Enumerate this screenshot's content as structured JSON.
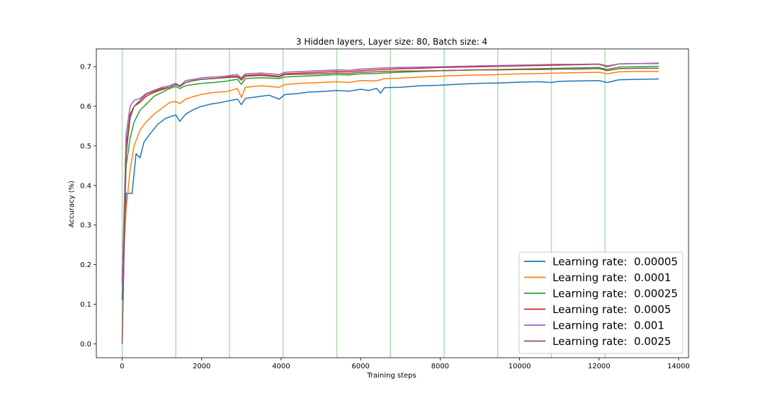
{
  "chart_data": {
    "type": "line",
    "title": "3 Hidden layers, Layer size: 80, Batch size: 4",
    "xlabel": "Training steps",
    "ylabel": "Accuracy (%)",
    "xlim": [
      -650,
      14250
    ],
    "ylim": [
      -0.035,
      0.745
    ],
    "xticks": [
      0,
      2000,
      4000,
      6000,
      8000,
      10000,
      12000,
      14000
    ],
    "yticks": [
      0.0,
      0.1,
      0.2,
      0.3,
      0.4,
      0.5,
      0.6,
      0.7
    ],
    "vlines": [
      0,
      1350,
      2700,
      4050,
      5400,
      6750,
      8100,
      9450,
      10800,
      12150
    ],
    "vline_color": "#b2dfb2",
    "legend_position": "lower-right",
    "grid": false,
    "series": [
      {
        "name": "Learning rate:  0.00005",
        "color": "#1f77b4",
        "points": [
          [
            0,
            0.11
          ],
          [
            100,
            0.38
          ],
          [
            250,
            0.38
          ],
          [
            350,
            0.48
          ],
          [
            450,
            0.47
          ],
          [
            550,
            0.51
          ],
          [
            700,
            0.53
          ],
          [
            900,
            0.555
          ],
          [
            1100,
            0.57
          ],
          [
            1350,
            0.578
          ],
          [
            1450,
            0.562
          ],
          [
            1600,
            0.58
          ],
          [
            1800,
            0.592
          ],
          [
            2000,
            0.6
          ],
          [
            2250,
            0.606
          ],
          [
            2500,
            0.61
          ],
          [
            2700,
            0.614
          ],
          [
            2900,
            0.618
          ],
          [
            3000,
            0.604
          ],
          [
            3100,
            0.62
          ],
          [
            3400,
            0.624
          ],
          [
            3700,
            0.628
          ],
          [
            3950,
            0.618
          ],
          [
            4100,
            0.63
          ],
          [
            4400,
            0.632
          ],
          [
            4700,
            0.636
          ],
          [
            5000,
            0.637
          ],
          [
            5400,
            0.64
          ],
          [
            5700,
            0.638
          ],
          [
            6000,
            0.643
          ],
          [
            6200,
            0.64
          ],
          [
            6400,
            0.645
          ],
          [
            6500,
            0.633
          ],
          [
            6600,
            0.647
          ],
          [
            7000,
            0.648
          ],
          [
            7500,
            0.652
          ],
          [
            8000,
            0.653
          ],
          [
            8500,
            0.656
          ],
          [
            9000,
            0.658
          ],
          [
            9500,
            0.659
          ],
          [
            10000,
            0.661
          ],
          [
            10500,
            0.662
          ],
          [
            10800,
            0.66
          ],
          [
            11000,
            0.663
          ],
          [
            11500,
            0.664
          ],
          [
            12000,
            0.665
          ],
          [
            12200,
            0.66
          ],
          [
            12500,
            0.667
          ],
          [
            13000,
            0.668
          ],
          [
            13500,
            0.669
          ]
        ]
      },
      {
        "name": "Learning rate:  0.0001",
        "color": "#ff7f0e",
        "points": [
          [
            0,
            0.15
          ],
          [
            100,
            0.34
          ],
          [
            200,
            0.44
          ],
          [
            300,
            0.5
          ],
          [
            450,
            0.54
          ],
          [
            600,
            0.56
          ],
          [
            800,
            0.58
          ],
          [
            1000,
            0.595
          ],
          [
            1200,
            0.61
          ],
          [
            1350,
            0.612
          ],
          [
            1450,
            0.607
          ],
          [
            1600,
            0.618
          ],
          [
            1800,
            0.625
          ],
          [
            2000,
            0.63
          ],
          [
            2300,
            0.635
          ],
          [
            2600,
            0.637
          ],
          [
            2700,
            0.639
          ],
          [
            2900,
            0.645
          ],
          [
            3000,
            0.622
          ],
          [
            3100,
            0.648
          ],
          [
            3500,
            0.652
          ],
          [
            3950,
            0.648
          ],
          [
            4100,
            0.655
          ],
          [
            4500,
            0.658
          ],
          [
            5000,
            0.66
          ],
          [
            5400,
            0.662
          ],
          [
            5700,
            0.66
          ],
          [
            6000,
            0.665
          ],
          [
            6400,
            0.664
          ],
          [
            6600,
            0.67
          ],
          [
            7000,
            0.671
          ],
          [
            7500,
            0.674
          ],
          [
            8000,
            0.676
          ],
          [
            8500,
            0.678
          ],
          [
            9000,
            0.679
          ],
          [
            9500,
            0.68
          ],
          [
            10000,
            0.682
          ],
          [
            10500,
            0.683
          ],
          [
            11000,
            0.684
          ],
          [
            11500,
            0.685
          ],
          [
            12000,
            0.686
          ],
          [
            12200,
            0.682
          ],
          [
            12500,
            0.687
          ],
          [
            13000,
            0.688
          ],
          [
            13500,
            0.688
          ]
        ]
      },
      {
        "name": "Learning rate:  0.00025",
        "color": "#2ca02c",
        "points": [
          [
            0,
            0.16
          ],
          [
            100,
            0.45
          ],
          [
            200,
            0.52
          ],
          [
            300,
            0.56
          ],
          [
            450,
            0.59
          ],
          [
            600,
            0.605
          ],
          [
            800,
            0.625
          ],
          [
            1000,
            0.635
          ],
          [
            1200,
            0.645
          ],
          [
            1350,
            0.65
          ],
          [
            1450,
            0.645
          ],
          [
            1600,
            0.652
          ],
          [
            1800,
            0.655
          ],
          [
            2000,
            0.658
          ],
          [
            2300,
            0.66
          ],
          [
            2600,
            0.663
          ],
          [
            2700,
            0.665
          ],
          [
            2900,
            0.668
          ],
          [
            3000,
            0.655
          ],
          [
            3100,
            0.67
          ],
          [
            3500,
            0.672
          ],
          [
            3950,
            0.67
          ],
          [
            4100,
            0.674
          ],
          [
            4500,
            0.676
          ],
          [
            5000,
            0.678
          ],
          [
            5400,
            0.68
          ],
          [
            5700,
            0.679
          ],
          [
            6000,
            0.682
          ],
          [
            6400,
            0.683
          ],
          [
            6600,
            0.684
          ],
          [
            7000,
            0.686
          ],
          [
            7500,
            0.688
          ],
          [
            8000,
            0.69
          ],
          [
            8500,
            0.691
          ],
          [
            9000,
            0.692
          ],
          [
            9500,
            0.693
          ],
          [
            10000,
            0.694
          ],
          [
            10500,
            0.695
          ],
          [
            11000,
            0.696
          ],
          [
            11500,
            0.697
          ],
          [
            12000,
            0.698
          ],
          [
            12200,
            0.693
          ],
          [
            12500,
            0.699
          ],
          [
            13000,
            0.7
          ],
          [
            13500,
            0.701
          ]
        ]
      },
      {
        "name": "Learning rate:  0.0005",
        "color": "#d62728",
        "points": [
          [
            0,
            0.16
          ],
          [
            100,
            0.5
          ],
          [
            200,
            0.58
          ],
          [
            300,
            0.6
          ],
          [
            450,
            0.61
          ],
          [
            600,
            0.625
          ],
          [
            800,
            0.635
          ],
          [
            1000,
            0.642
          ],
          [
            1200,
            0.648
          ],
          [
            1350,
            0.655
          ],
          [
            1450,
            0.65
          ],
          [
            1600,
            0.66
          ],
          [
            1800,
            0.665
          ],
          [
            2000,
            0.668
          ],
          [
            2300,
            0.67
          ],
          [
            2600,
            0.673
          ],
          [
            2700,
            0.675
          ],
          [
            2900,
            0.676
          ],
          [
            3000,
            0.668
          ],
          [
            3100,
            0.678
          ],
          [
            3500,
            0.68
          ],
          [
            3950,
            0.676
          ],
          [
            4100,
            0.682
          ],
          [
            4500,
            0.684
          ],
          [
            5000,
            0.686
          ],
          [
            5400,
            0.688
          ],
          [
            5700,
            0.687
          ],
          [
            6000,
            0.69
          ],
          [
            6400,
            0.692
          ],
          [
            6600,
            0.693
          ],
          [
            7000,
            0.695
          ],
          [
            7500,
            0.696
          ],
          [
            8000,
            0.698
          ],
          [
            8500,
            0.699
          ],
          [
            9000,
            0.7
          ],
          [
            9500,
            0.701
          ],
          [
            10000,
            0.702
          ],
          [
            10500,
            0.703
          ],
          [
            11000,
            0.704
          ],
          [
            11500,
            0.705
          ],
          [
            12000,
            0.706
          ],
          [
            12200,
            0.7
          ],
          [
            12500,
            0.707
          ],
          [
            13000,
            0.708
          ],
          [
            13500,
            0.709
          ]
        ]
      },
      {
        "name": "Learning rate:  0.001",
        "color": "#9467bd",
        "points": [
          [
            0,
            0.15
          ],
          [
            100,
            0.53
          ],
          [
            200,
            0.6
          ],
          [
            300,
            0.615
          ],
          [
            450,
            0.62
          ],
          [
            600,
            0.632
          ],
          [
            800,
            0.64
          ],
          [
            1000,
            0.648
          ],
          [
            1200,
            0.652
          ],
          [
            1350,
            0.658
          ],
          [
            1450,
            0.652
          ],
          [
            1600,
            0.665
          ],
          [
            1800,
            0.668
          ],
          [
            2000,
            0.672
          ],
          [
            2300,
            0.674
          ],
          [
            2600,
            0.676
          ],
          [
            2700,
            0.678
          ],
          [
            2900,
            0.68
          ],
          [
            3000,
            0.672
          ],
          [
            3100,
            0.682
          ],
          [
            3500,
            0.684
          ],
          [
            3950,
            0.68
          ],
          [
            4100,
            0.686
          ],
          [
            4500,
            0.688
          ],
          [
            5000,
            0.69
          ],
          [
            5400,
            0.692
          ],
          [
            5700,
            0.691
          ],
          [
            6000,
            0.694
          ],
          [
            6400,
            0.696
          ],
          [
            6600,
            0.697
          ],
          [
            7000,
            0.698
          ],
          [
            7500,
            0.699
          ],
          [
            8000,
            0.7
          ],
          [
            8500,
            0.701
          ],
          [
            9000,
            0.702
          ],
          [
            9500,
            0.703
          ],
          [
            10000,
            0.704
          ],
          [
            10500,
            0.705
          ],
          [
            11000,
            0.706
          ],
          [
            11500,
            0.706
          ],
          [
            12000,
            0.707
          ],
          [
            12200,
            0.702
          ],
          [
            12500,
            0.707
          ],
          [
            13000,
            0.708
          ],
          [
            13500,
            0.708
          ]
        ]
      },
      {
        "name": "Learning rate:  0.0025",
        "color": "#8c564b",
        "points": [
          [
            0,
            0.0
          ],
          [
            100,
            0.48
          ],
          [
            200,
            0.57
          ],
          [
            300,
            0.6
          ],
          [
            450,
            0.615
          ],
          [
            600,
            0.63
          ],
          [
            800,
            0.638
          ],
          [
            1000,
            0.645
          ],
          [
            1200,
            0.648
          ],
          [
            1350,
            0.655
          ],
          [
            1450,
            0.65
          ],
          [
            1600,
            0.66
          ],
          [
            1800,
            0.665
          ],
          [
            2000,
            0.668
          ],
          [
            2300,
            0.67
          ],
          [
            2600,
            0.672
          ],
          [
            2700,
            0.673
          ],
          [
            2900,
            0.674
          ],
          [
            3000,
            0.666
          ],
          [
            3100,
            0.676
          ],
          [
            3500,
            0.678
          ],
          [
            3950,
            0.674
          ],
          [
            4100,
            0.68
          ],
          [
            4500,
            0.681
          ],
          [
            5000,
            0.682
          ],
          [
            5400,
            0.684
          ],
          [
            5700,
            0.683
          ],
          [
            6000,
            0.686
          ],
          [
            6400,
            0.687
          ],
          [
            6600,
            0.688
          ],
          [
            7000,
            0.689
          ],
          [
            7500,
            0.689
          ],
          [
            8000,
            0.69
          ],
          [
            8500,
            0.691
          ],
          [
            9000,
            0.692
          ],
          [
            9500,
            0.692
          ],
          [
            10000,
            0.693
          ],
          [
            10500,
            0.693
          ],
          [
            11000,
            0.694
          ],
          [
            11500,
            0.694
          ],
          [
            12000,
            0.695
          ],
          [
            12200,
            0.69
          ],
          [
            12500,
            0.695
          ],
          [
            13000,
            0.696
          ],
          [
            13500,
            0.696
          ]
        ]
      }
    ]
  }
}
